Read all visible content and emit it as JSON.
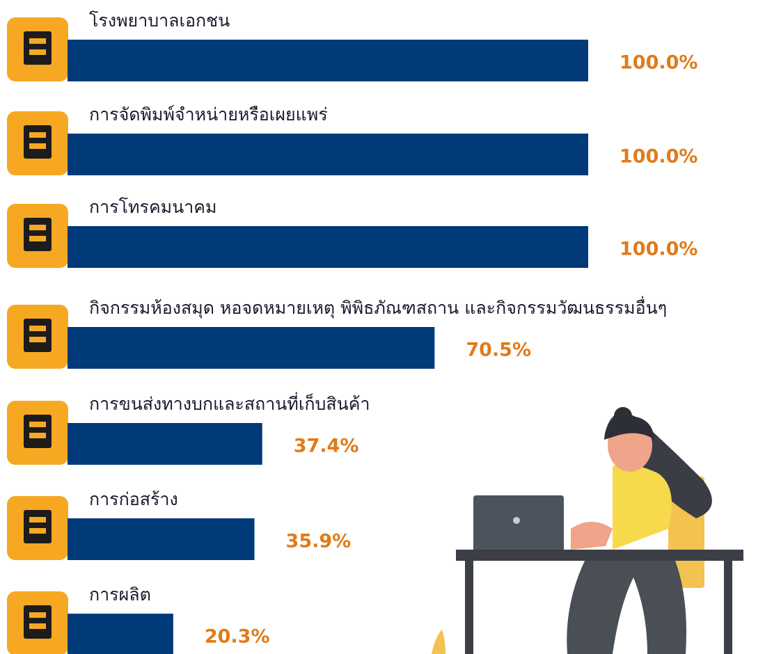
{
  "chart_data": {
    "type": "bar",
    "categories": [
      "โรงพยาบาลเอกชน",
      "การจัดพิมพ์จำหน่ายหรือเผยแพร่",
      "การโทรคมนาคม",
      "กิจกรรมห้องสมุด หอจดหมายเหตุ พิพิธภัณฑสถาน และกิจกรรมวัฒนธรรมอื่นๆ",
      "การขนส่งทางบกและสถานที่เก็บสินค้า",
      "การก่อสร้าง",
      "การผลิต"
    ],
    "values": [
      100.0,
      100.0,
      100.0,
      70.5,
      37.4,
      35.9,
      20.3
    ],
    "value_labels": [
      "100.0%",
      "100.0%",
      "100.0%",
      "70.5%",
      "37.4%",
      "35.9%",
      "20.3%"
    ],
    "color": "#003a78"
  }
}
